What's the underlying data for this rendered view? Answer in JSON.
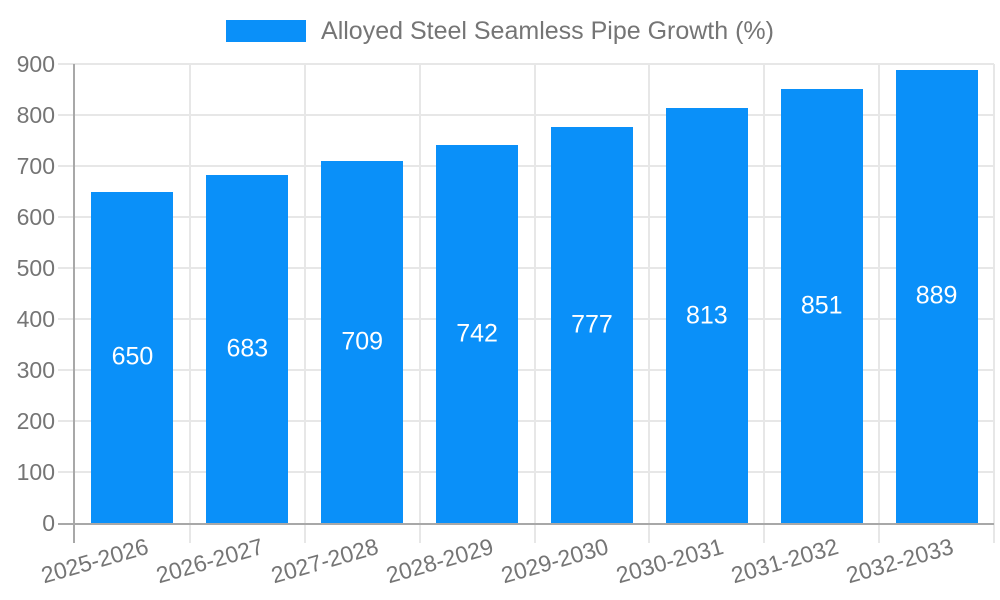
{
  "chart_data": {
    "type": "bar",
    "title": "Alloyed Steel Seamless Pipe Growth (%)",
    "legend_label": "Alloyed Steel Seamless Pipe Growth (%)",
    "legend_position": "top",
    "categories": [
      "2025-2026",
      "2026-2027",
      "2027-2028",
      "2028-2029",
      "2029-2030",
      "2030-2031",
      "2031-2032",
      "2032-2033"
    ],
    "values": [
      650,
      683,
      709,
      742,
      777,
      813,
      851,
      889
    ],
    "value_labels_inside_bars": true,
    "xlabel": "",
    "ylabel": "",
    "ylim": [
      0,
      900
    ],
    "ytick_step": 100,
    "yticks": [
      0,
      100,
      200,
      300,
      400,
      500,
      600,
      700,
      800,
      900
    ],
    "grid": true,
    "colors": {
      "bar": "#0A90F9",
      "grid": "#E7E7E7",
      "axis": "#A8A8A8",
      "tick_text": "#757575",
      "legend_text": "#757575",
      "value_label_text": "#FFFFFF",
      "background": "#FFFFFF"
    }
  }
}
